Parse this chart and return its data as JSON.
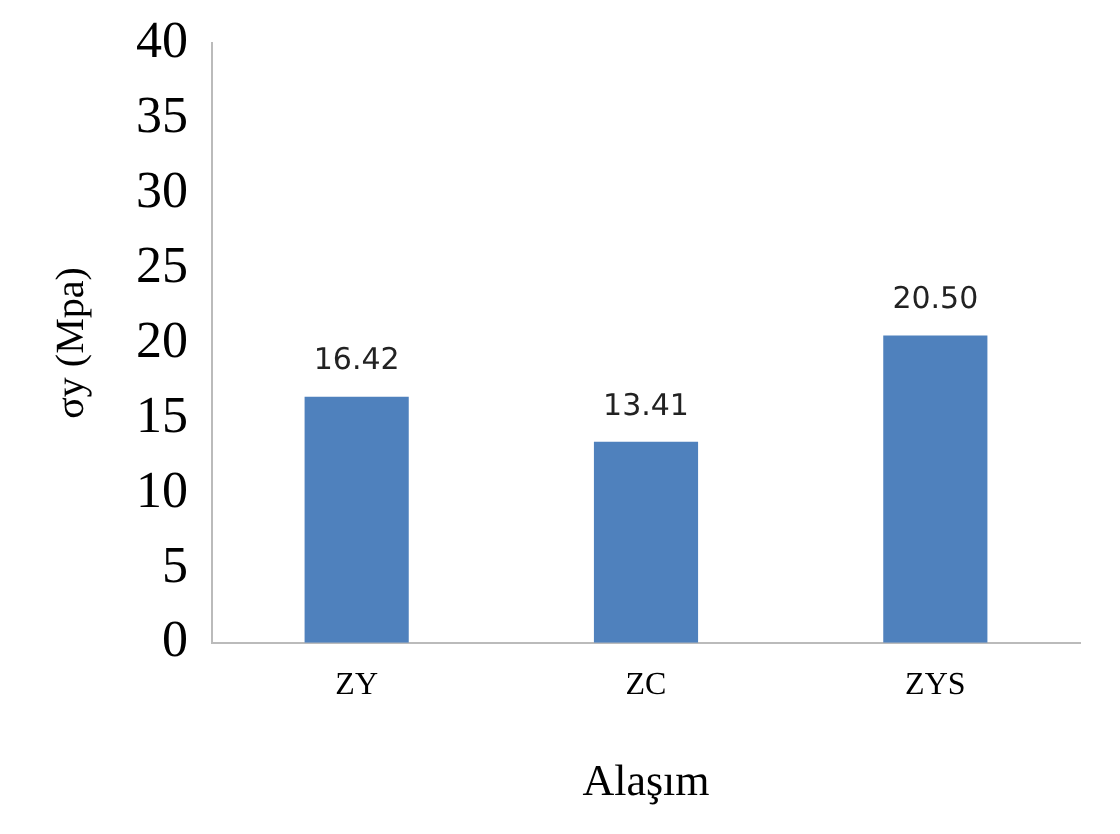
{
  "chart_data": {
    "type": "bar",
    "xlabel": "Alaşım",
    "ylabel": "σy (Mpa)",
    "categories": [
      "ZY",
      "ZC",
      "ZYS"
    ],
    "values": [
      16.42,
      13.41,
      20.5
    ],
    "value_labels": [
      "16.42",
      "13.41",
      "20.50"
    ],
    "color": "#4f81bd",
    "ylim": [
      0,
      40
    ],
    "yticks": [
      0,
      5,
      10,
      15,
      20,
      25,
      30,
      35,
      40
    ],
    "grid": false,
    "legend": false
  }
}
